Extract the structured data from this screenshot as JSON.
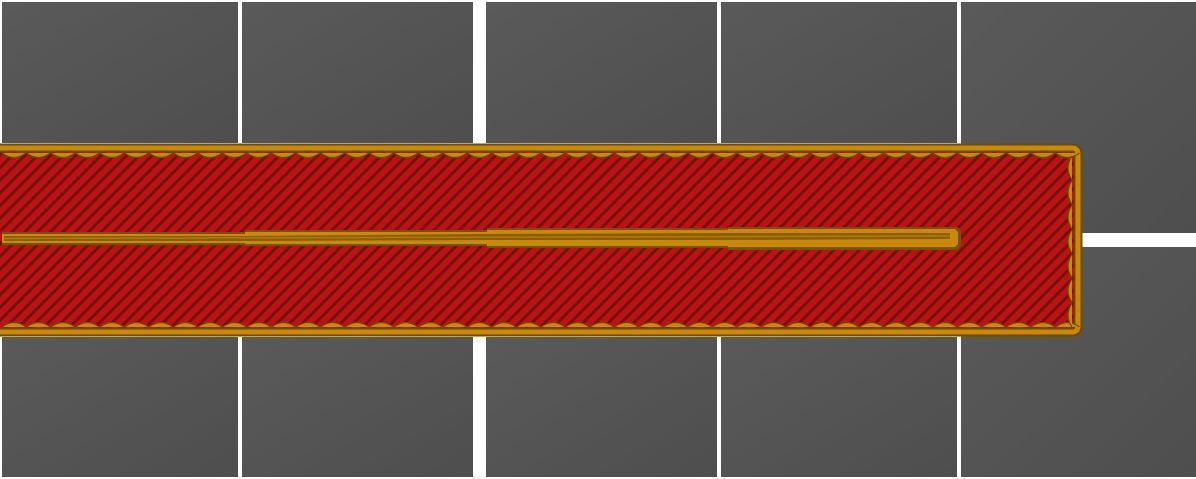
{
  "scene": {
    "view": "gcode-layer-preview",
    "layer_feature": "solid-infill-with-perimeters"
  },
  "bed": {
    "tile_color": "#5a5a5a",
    "tile_color_dark": "#4e4e4e",
    "grid_line_color": "#ffffff"
  },
  "toolpath": {
    "infill_color": "#b81414",
    "infill_hatch_color": "#7a0d0d",
    "perimeter_color": "#c98a0a",
    "perimeter_dark": "#6e4a03",
    "perimeter_highlight": "#e8b030"
  }
}
